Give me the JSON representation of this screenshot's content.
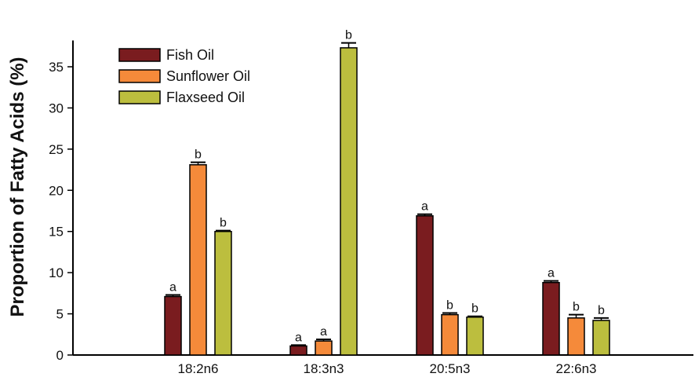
{
  "chart_data": {
    "type": "bar",
    "ylabel": "Proportion of Fatty Acids (%)",
    "xlabel": "",
    "ylim": [
      0,
      38
    ],
    "yticks": [
      0,
      5,
      10,
      15,
      20,
      25,
      30,
      35
    ],
    "categories": [
      "18:2n6",
      "18:3n3",
      "20:5n3",
      "22:6n3"
    ],
    "legend_position": "top-left",
    "series": [
      {
        "name": "Fish Oil",
        "color": "#7a1c1f",
        "values": [
          7.1,
          1.1,
          16.9,
          8.8
        ],
        "errors": [
          0.2,
          0.1,
          0.2,
          0.2
        ],
        "labels": [
          "a",
          "a",
          "a",
          "a"
        ]
      },
      {
        "name": "Sunflower Oil",
        "color": "#f58a3a",
        "values": [
          23.1,
          1.7,
          4.9,
          4.5
        ],
        "errors": [
          0.3,
          0.2,
          0.2,
          0.4
        ],
        "labels": [
          "b",
          "a",
          "b",
          "b"
        ]
      },
      {
        "name": "Flaxseed Oil",
        "color": "#bcbe3e",
        "values": [
          15.0,
          37.3,
          4.6,
          4.2
        ],
        "errors": [
          0.1,
          0.6,
          0.1,
          0.3
        ],
        "labels": [
          "b",
          "b",
          "b",
          "b"
        ]
      }
    ]
  }
}
